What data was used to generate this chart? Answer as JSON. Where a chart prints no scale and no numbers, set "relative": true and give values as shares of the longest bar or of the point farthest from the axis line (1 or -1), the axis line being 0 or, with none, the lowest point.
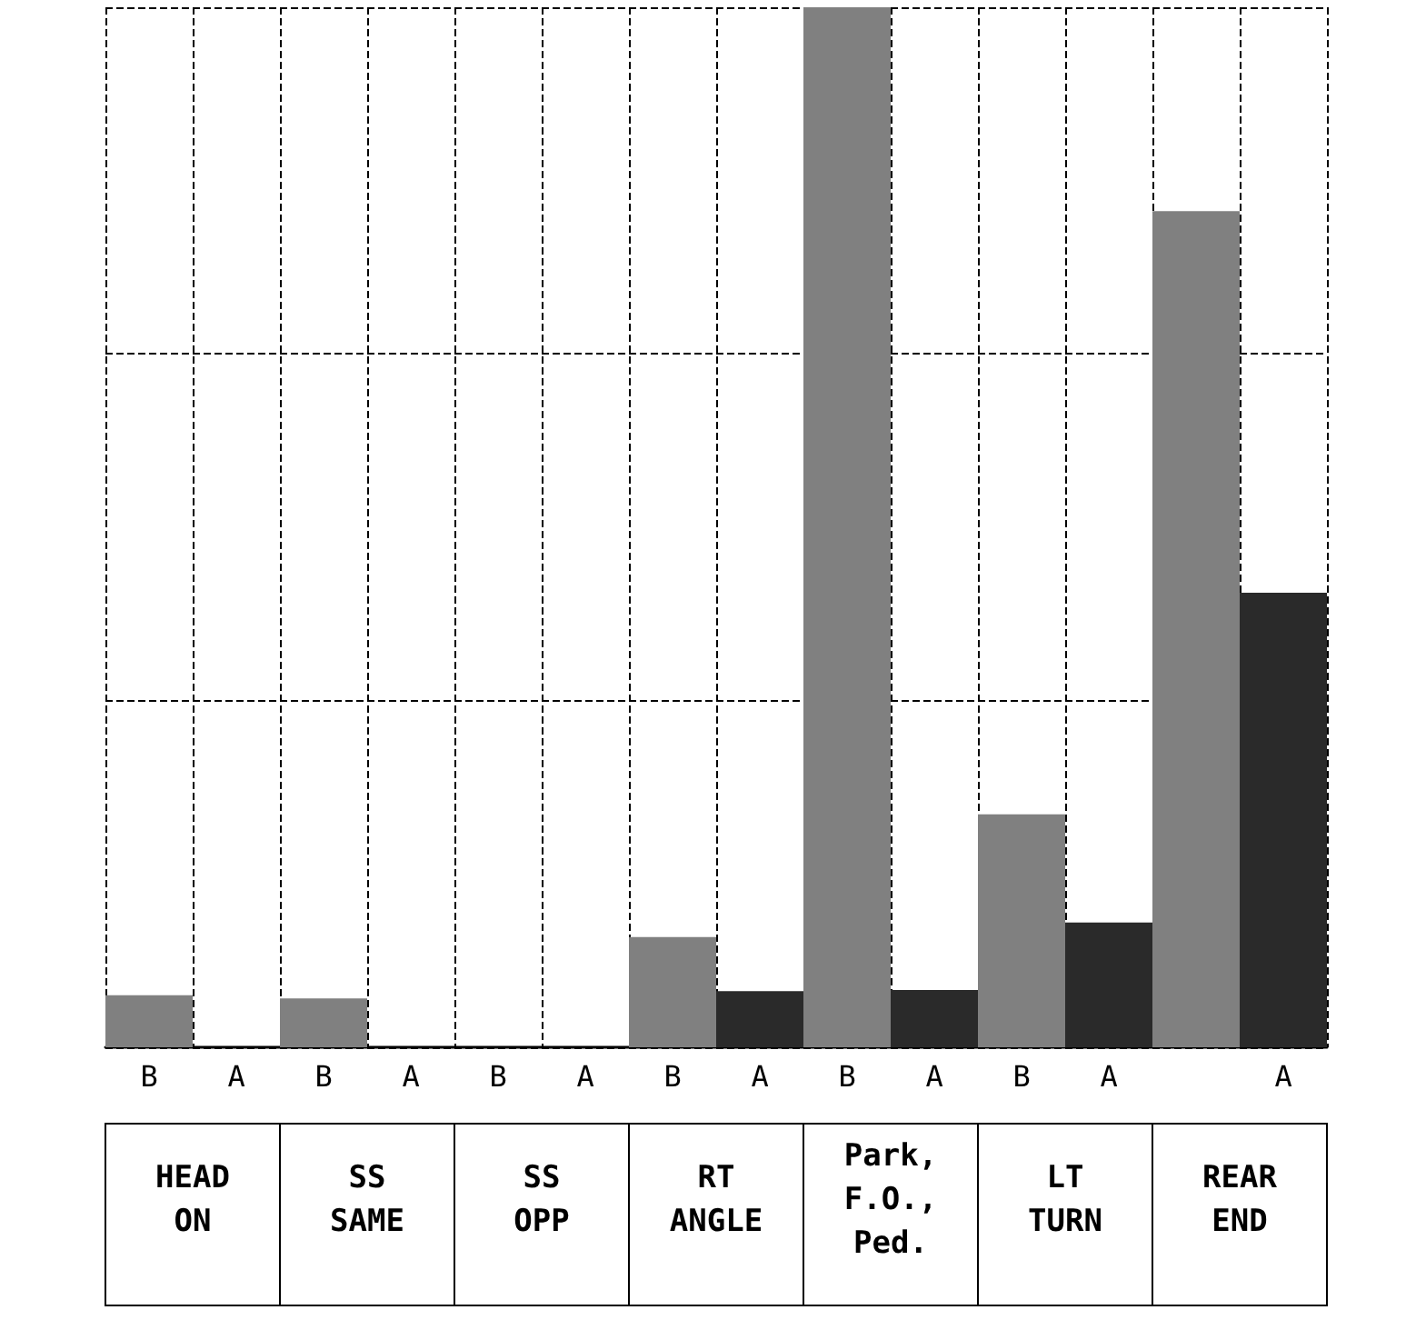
{
  "chart_data": {
    "type": "bar",
    "relative": true,
    "grid": true,
    "categories": [
      "B",
      "A",
      "B",
      "A",
      "B",
      "A",
      "B",
      "A",
      "B",
      "A",
      "B",
      "A",
      null,
      "A"
    ],
    "values": [
      0.05,
      0,
      0.047,
      0,
      0,
      0,
      0.106,
      0.054,
      1,
      0.055,
      0.224,
      0.12,
      0.804,
      0.437
    ],
    "colors": [
      "#808080",
      "#2a2a2a",
      "#808080",
      "#2a2a2a",
      "#808080",
      "#2a2a2a",
      "#808080",
      "#2a2a2a",
      "#808080",
      "#2a2a2a",
      "#808080",
      "#2a2a2a",
      "#808080",
      "#2a2a2a"
    ],
    "annotations": [
      "HEAD ON",
      "SS SAME",
      "SS OPP",
      "RT ANGLE",
      "Park, F.O., Ped.",
      "LT TURN",
      "REAR END"
    ]
  }
}
